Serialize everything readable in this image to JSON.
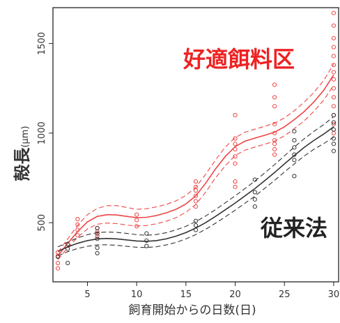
{
  "chart_data": {
    "type": "scatter",
    "xlabel": "飼育開始からの日数(日)",
    "ylabel": "殻長",
    "ylabel_unit": "(µm)",
    "xlim": [
      1.5,
      30.5
    ],
    "ylim": [
      170,
      1700
    ],
    "xticks": [
      5,
      10,
      15,
      20,
      25,
      30
    ],
    "yticks": [
      500,
      1000,
      1500
    ],
    "grid": false,
    "annotations": [
      {
        "name": "red-label",
        "text": "好適餌料区",
        "color": "#ee2222"
      },
      {
        "name": "black-label",
        "text": "従来法",
        "color": "#222222"
      }
    ],
    "series": [
      {
        "color": "#ee4444",
        "points": [
          [
            2,
            245
          ],
          [
            2,
            275
          ],
          [
            2,
            315
          ],
          [
            2,
            335
          ],
          [
            4,
            430
          ],
          [
            4,
            460
          ],
          [
            4,
            490
          ],
          [
            4,
            520
          ],
          [
            6,
            425
          ],
          [
            6,
            450
          ],
          [
            6,
            470
          ],
          [
            10,
            480
          ],
          [
            10,
            515
          ],
          [
            10,
            545
          ],
          [
            16,
            590
          ],
          [
            16,
            620
          ],
          [
            16,
            650
          ],
          [
            16,
            680
          ],
          [
            16,
            700
          ],
          [
            16,
            730
          ],
          [
            20,
            700
          ],
          [
            20,
            730
          ],
          [
            20,
            830
          ],
          [
            20,
            870
          ],
          [
            20,
            910
          ],
          [
            20,
            940
          ],
          [
            20,
            970
          ],
          [
            20,
            1100
          ],
          [
            24,
            880
          ],
          [
            24,
            910
          ],
          [
            24,
            940
          ],
          [
            24,
            960
          ],
          [
            24,
            1000
          ],
          [
            24,
            1050
          ],
          [
            24,
            1150
          ],
          [
            24,
            1200
          ],
          [
            24,
            1270
          ],
          [
            30,
            1000
          ],
          [
            30,
            1050
          ],
          [
            30,
            1100
          ],
          [
            30,
            1150
          ],
          [
            30,
            1200
          ],
          [
            30,
            1250
          ],
          [
            30,
            1300
          ],
          [
            30,
            1340
          ],
          [
            30,
            1380
          ],
          [
            30,
            1430
          ],
          [
            30,
            1480
          ],
          [
            30,
            1530
          ],
          [
            30,
            1600
          ],
          [
            30,
            1670
          ]
        ],
        "fit": [
          [
            2,
            315
          ],
          [
            3,
            385
          ],
          [
            4,
            450
          ],
          [
            5,
            505
          ],
          [
            6,
            535
          ],
          [
            7,
            545
          ],
          [
            8,
            543
          ],
          [
            9,
            535
          ],
          [
            10,
            528
          ],
          [
            11,
            530
          ],
          [
            12,
            540
          ],
          [
            13,
            555
          ],
          [
            14,
            575
          ],
          [
            15,
            605
          ],
          [
            16,
            650
          ],
          [
            17,
            720
          ],
          [
            18,
            800
          ],
          [
            19,
            870
          ],
          [
            20,
            925
          ],
          [
            21,
            955
          ],
          [
            22,
            972
          ],
          [
            23,
            988
          ],
          [
            24,
            1005
          ],
          [
            25,
            1035
          ],
          [
            26,
            1075
          ],
          [
            27,
            1120
          ],
          [
            28,
            1175
          ],
          [
            29,
            1240
          ],
          [
            30,
            1325
          ]
        ],
        "upper": [
          [
            2,
            335
          ],
          [
            3,
            410
          ],
          [
            4,
            485
          ],
          [
            5,
            545
          ],
          [
            6,
            580
          ],
          [
            7,
            595
          ],
          [
            8,
            595
          ],
          [
            9,
            585
          ],
          [
            10,
            575
          ],
          [
            11,
            578
          ],
          [
            12,
            588
          ],
          [
            13,
            602
          ],
          [
            14,
            622
          ],
          [
            15,
            652
          ],
          [
            16,
            698
          ],
          [
            17,
            770
          ],
          [
            18,
            850
          ],
          [
            19,
            922
          ],
          [
            20,
            975
          ],
          [
            21,
            1005
          ],
          [
            22,
            1022
          ],
          [
            23,
            1038
          ],
          [
            24,
            1055
          ],
          [
            25,
            1085
          ],
          [
            26,
            1125
          ],
          [
            27,
            1172
          ],
          [
            28,
            1228
          ],
          [
            29,
            1295
          ],
          [
            30,
            1385
          ]
        ],
        "lower": [
          [
            2,
            295
          ],
          [
            3,
            360
          ],
          [
            4,
            418
          ],
          [
            5,
            465
          ],
          [
            6,
            492
          ],
          [
            7,
            498
          ],
          [
            8,
            495
          ],
          [
            9,
            487
          ],
          [
            10,
            482
          ],
          [
            11,
            484
          ],
          [
            12,
            494
          ],
          [
            13,
            508
          ],
          [
            14,
            528
          ],
          [
            15,
            558
          ],
          [
            16,
            602
          ],
          [
            17,
            670
          ],
          [
            18,
            750
          ],
          [
            19,
            818
          ],
          [
            20,
            875
          ],
          [
            21,
            905
          ],
          [
            22,
            922
          ],
          [
            23,
            938
          ],
          [
            24,
            955
          ],
          [
            25,
            985
          ],
          [
            26,
            1025
          ],
          [
            27,
            1068
          ],
          [
            28,
            1122
          ],
          [
            29,
            1185
          ],
          [
            30,
            1268
          ]
        ]
      },
      {
        "color": "#333333",
        "points": [
          [
            2,
            310
          ],
          [
            3,
            275
          ],
          [
            3,
            355
          ],
          [
            3,
            380
          ],
          [
            6,
            330
          ],
          [
            6,
            360
          ],
          [
            6,
            410
          ],
          [
            6,
            440
          ],
          [
            6,
            470
          ],
          [
            11,
            370
          ],
          [
            11,
            400
          ],
          [
            11,
            440
          ],
          [
            16,
            460
          ],
          [
            16,
            485
          ],
          [
            16,
            510
          ],
          [
            22,
            590
          ],
          [
            22,
            630
          ],
          [
            22,
            670
          ],
          [
            22,
            740
          ],
          [
            26,
            760
          ],
          [
            26,
            850
          ],
          [
            26,
            880
          ],
          [
            26,
            920
          ],
          [
            26,
            960
          ],
          [
            26,
            1010
          ],
          [
            30,
            900
          ],
          [
            30,
            940
          ],
          [
            30,
            970
          ],
          [
            30,
            1020
          ],
          [
            30,
            1060
          ],
          [
            30,
            1100
          ]
        ],
        "fit": [
          [
            2,
            340
          ],
          [
            3,
            365
          ],
          [
            4,
            385
          ],
          [
            5,
            400
          ],
          [
            6,
            410
          ],
          [
            7,
            412
          ],
          [
            8,
            410
          ],
          [
            9,
            404
          ],
          [
            10,
            398
          ],
          [
            11,
            396
          ],
          [
            12,
            400
          ],
          [
            13,
            410
          ],
          [
            14,
            425
          ],
          [
            15,
            445
          ],
          [
            16,
            470
          ],
          [
            17,
            500
          ],
          [
            18,
            535
          ],
          [
            19,
            572
          ],
          [
            20,
            610
          ],
          [
            21,
            650
          ],
          [
            22,
            690
          ],
          [
            23,
            735
          ],
          [
            24,
            780
          ],
          [
            25,
            828
          ],
          [
            26,
            875
          ],
          [
            27,
            920
          ],
          [
            28,
            960
          ],
          [
            29,
            995
          ],
          [
            30,
            1035
          ]
        ],
        "upper": [
          [
            2,
            365
          ],
          [
            3,
            392
          ],
          [
            4,
            415
          ],
          [
            5,
            433
          ],
          [
            6,
            445
          ],
          [
            7,
            448
          ],
          [
            8,
            446
          ],
          [
            9,
            440
          ],
          [
            10,
            433
          ],
          [
            11,
            430
          ],
          [
            12,
            434
          ],
          [
            13,
            444
          ],
          [
            14,
            460
          ],
          [
            15,
            480
          ],
          [
            16,
            506
          ],
          [
            17,
            537
          ],
          [
            18,
            573
          ],
          [
            19,
            611
          ],
          [
            20,
            650
          ],
          [
            21,
            691
          ],
          [
            22,
            732
          ],
          [
            23,
            778
          ],
          [
            24,
            824
          ],
          [
            25,
            873
          ],
          [
            26,
            922
          ],
          [
            27,
            968
          ],
          [
            28,
            1010
          ],
          [
            29,
            1048
          ],
          [
            30,
            1092
          ]
        ],
        "lower": [
          [
            2,
            315
          ],
          [
            3,
            338
          ],
          [
            4,
            356
          ],
          [
            5,
            368
          ],
          [
            6,
            376
          ],
          [
            7,
            377
          ],
          [
            8,
            374
          ],
          [
            9,
            368
          ],
          [
            10,
            363
          ],
          [
            11,
            362
          ],
          [
            12,
            366
          ],
          [
            13,
            376
          ],
          [
            14,
            390
          ],
          [
            15,
            410
          ],
          [
            16,
            434
          ],
          [
            17,
            463
          ],
          [
            18,
            497
          ],
          [
            19,
            533
          ],
          [
            20,
            570
          ],
          [
            21,
            609
          ],
          [
            22,
            648
          ],
          [
            23,
            692
          ],
          [
            24,
            736
          ],
          [
            25,
            783
          ],
          [
            26,
            828
          ],
          [
            27,
            872
          ],
          [
            28,
            910
          ],
          [
            29,
            942
          ],
          [
            30,
            978
          ]
        ]
      }
    ]
  }
}
